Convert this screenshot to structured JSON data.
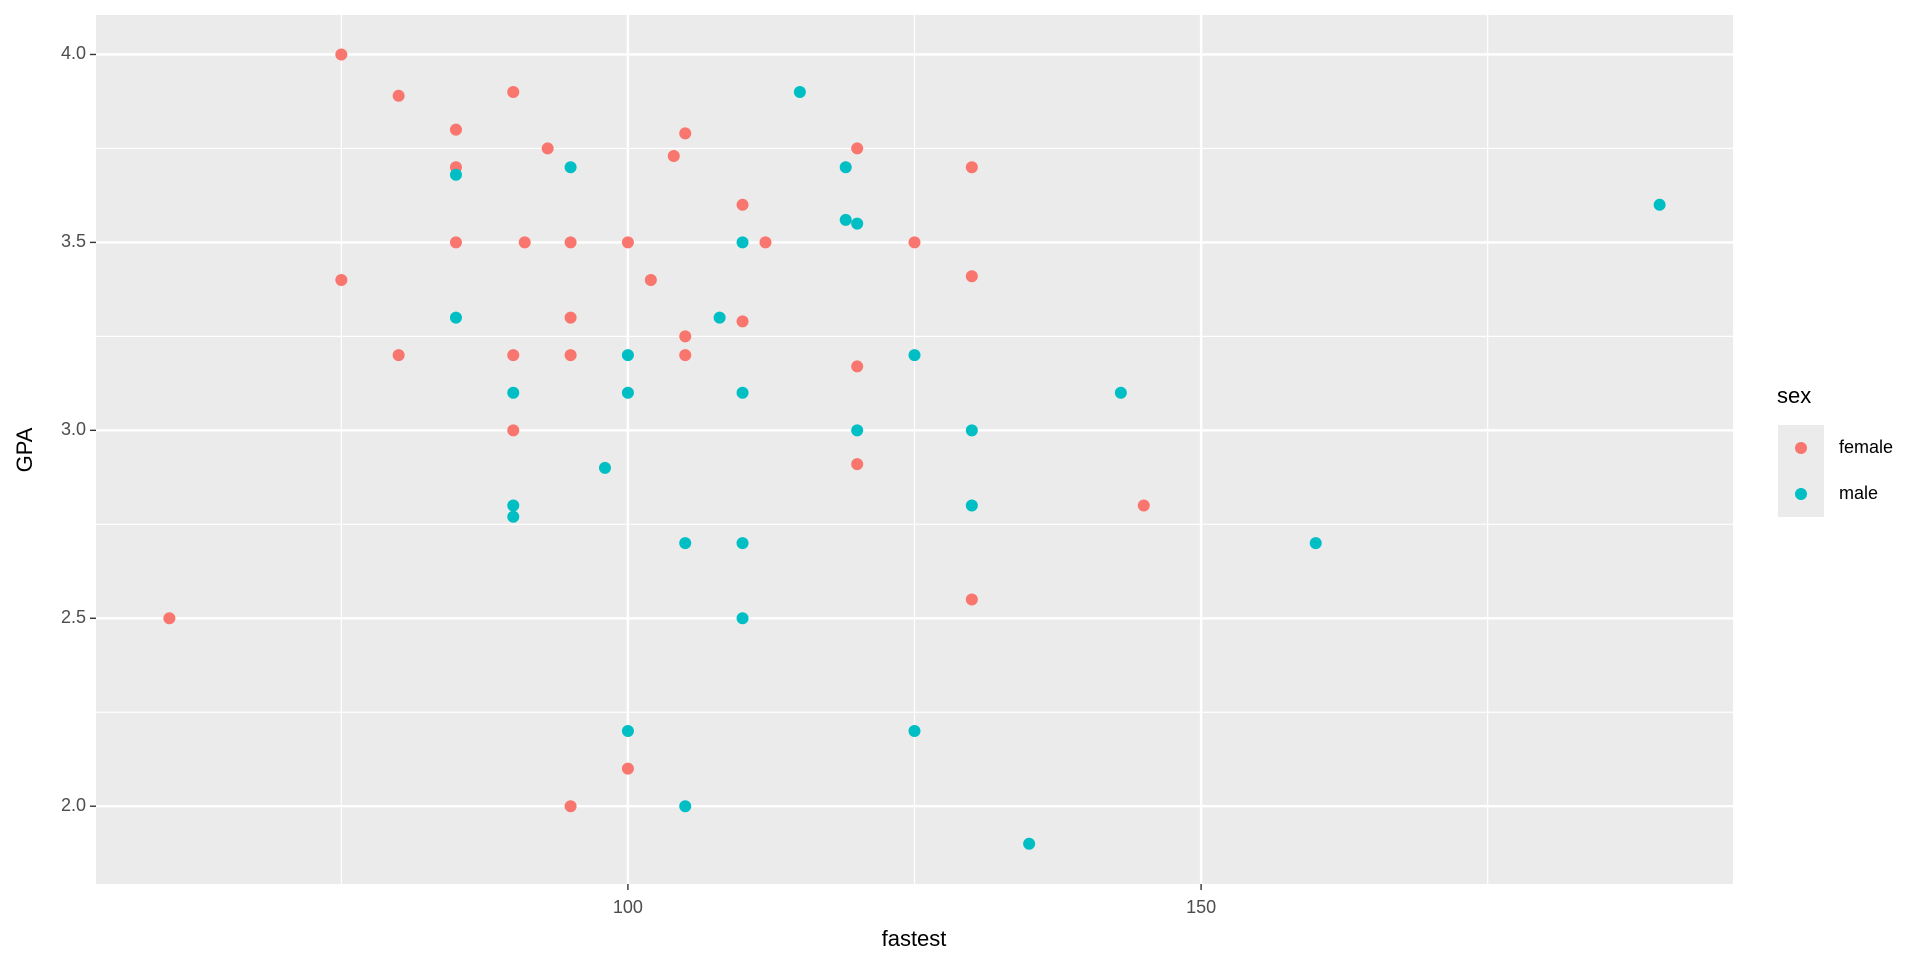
{
  "chart_data": {
    "type": "scatter",
    "x_label": "fastest",
    "y_label": "GPA",
    "legend_title": "sex",
    "legend": "right",
    "panel_background": "#EBEBEB",
    "grid": true,
    "xlim": [
      53.6,
      196.4
    ],
    "ylim": [
      1.793,
      4.105
    ],
    "xticks": [
      100,
      150
    ],
    "xminorticks": [
      75,
      125,
      175
    ],
    "yticks": [
      {
        "value": 2,
        "label": "2.0"
      },
      {
        "value": 2.5,
        "label": "2.5"
      },
      {
        "value": 3,
        "label": "3.0"
      },
      {
        "value": 3.5,
        "label": "3.5"
      },
      {
        "value": 4,
        "label": "4.0"
      }
    ],
    "yminorticks": [
      2.25,
      2.75,
      3.25,
      3.75
    ],
    "series": [
      {
        "name": "female",
        "color": "#F8766D",
        "x": [
          75,
          80,
          90,
          85,
          93,
          105,
          104,
          120,
          85,
          130,
          110,
          85,
          91,
          95,
          100,
          112,
          125,
          75,
          102,
          130,
          95,
          105,
          110,
          80,
          90,
          95,
          105,
          120,
          90,
          120,
          145,
          130,
          60,
          100,
          95
        ],
        "values": [
          4.0,
          3.89,
          3.9,
          3.8,
          3.75,
          3.79,
          3.73,
          3.75,
          3.7,
          3.7,
          3.6,
          3.5,
          3.5,
          3.5,
          3.5,
          3.5,
          3.5,
          3.4,
          3.4,
          3.41,
          3.3,
          3.25,
          3.29,
          3.2,
          3.2,
          3.2,
          3.2,
          3.17,
          3.0,
          2.91,
          2.8,
          2.55,
          2.5,
          2.1,
          2.0
        ]
      },
      {
        "name": "male",
        "color": "#00BFC4",
        "x": [
          115,
          95,
          119,
          85,
          119,
          120,
          110,
          85,
          108,
          100,
          125,
          90,
          100,
          110,
          143,
          120,
          130,
          98,
          90,
          130,
          90,
          105,
          110,
          160,
          110,
          100,
          125,
          105,
          135,
          190
        ],
        "values": [
          3.9,
          3.7,
          3.7,
          3.68,
          3.56,
          3.55,
          3.5,
          3.3,
          3.3,
          3.2,
          3.2,
          3.1,
          3.1,
          3.1,
          3.1,
          3.0,
          3.0,
          2.9,
          2.8,
          2.8,
          2.77,
          2.7,
          2.7,
          2.7,
          2.5,
          2.2,
          2.2,
          2.0,
          1.9,
          3.6
        ]
      }
    ]
  }
}
